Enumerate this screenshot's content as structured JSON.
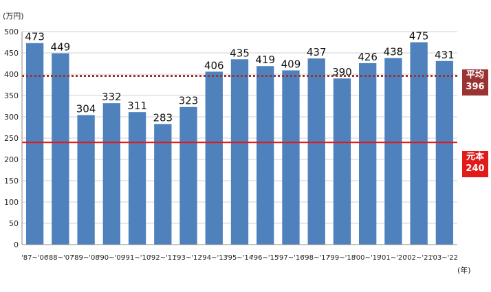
{
  "chart_data": {
    "type": "bar",
    "unit_label": "(万円)",
    "xunit_label": "(年)",
    "categories": [
      "'87~'06",
      "'88~'07",
      "'89~'08",
      "'90~'09",
      "'91~'10",
      "'92~'11",
      "'93~'12",
      "'94~'13",
      "'95~'14",
      "'96~'15",
      "'97~'16",
      "'98~'17",
      "'99~'18",
      "'00~'19",
      "'01~'20",
      "'02~'21",
      "'03~'22"
    ],
    "values": [
      473,
      449,
      304,
      332,
      311,
      283,
      323,
      406,
      435,
      419,
      409,
      437,
      390,
      426,
      438,
      475,
      431
    ],
    "ylim": [
      0,
      500
    ],
    "yticks": [
      0,
      50,
      100,
      150,
      200,
      250,
      300,
      350,
      400,
      450,
      500
    ],
    "bar_color": "#4f81bd",
    "grid": true,
    "reference_lines": [
      {
        "label": "平均",
        "value": 396,
        "value_text": "396",
        "style": "dotted",
        "color": "#9a3333"
      },
      {
        "label": "元本",
        "value": 240,
        "value_text": "240",
        "style": "solid",
        "color": "#e11a1a"
      }
    ]
  }
}
